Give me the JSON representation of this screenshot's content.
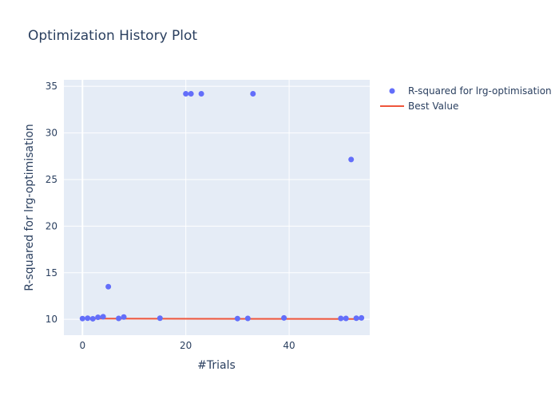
{
  "chart_data": {
    "type": "scatter",
    "title": "Optimization History Plot",
    "xlabel": "#Trials",
    "ylabel": "R-squared for lrg-optimisation",
    "xlim": [
      -3.6,
      55.6
    ],
    "ylim": [
      8.3,
      35.7
    ],
    "xticks": [
      0,
      20,
      40
    ],
    "yticks": [
      10,
      15,
      20,
      25,
      30,
      35
    ],
    "grid": true,
    "legend_position": "top-right",
    "colors": {
      "points": "#636efa",
      "best_line": "#ef553b",
      "plot_bg": "#e5ecf6",
      "grid": "#ffffff",
      "text": "#2a3f5f"
    },
    "series": [
      {
        "name": "R-squared for lrg-optimisation",
        "kind": "markers",
        "x": [
          0,
          1,
          2,
          3,
          4,
          5,
          7,
          8,
          15,
          20,
          21,
          23,
          30,
          32,
          33,
          39,
          50,
          51,
          52,
          53,
          54
        ],
        "y": [
          10.08,
          10.12,
          10.06,
          10.22,
          10.28,
          13.5,
          10.1,
          10.25,
          10.12,
          34.2,
          34.2,
          34.2,
          10.08,
          10.1,
          34.2,
          10.15,
          10.1,
          10.1,
          27.15,
          10.12,
          10.15
        ]
      },
      {
        "name": "Best Value",
        "kind": "line",
        "x": [
          0,
          54
        ],
        "y": [
          10.08,
          10.03
        ]
      }
    ]
  }
}
